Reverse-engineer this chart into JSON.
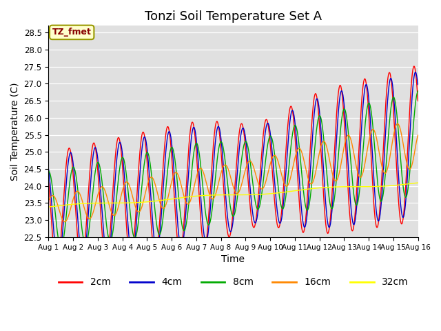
{
  "title": "Tonzi Soil Temperature Set A",
  "xlabel": "Time",
  "ylabel": "Soil Temperature (C)",
  "annotation": "TZ_fmet",
  "ylim": [
    22.5,
    28.7
  ],
  "yticks": [
    22.5,
    23.0,
    23.5,
    24.0,
    24.5,
    25.0,
    25.5,
    26.0,
    26.5,
    27.0,
    27.5,
    28.0,
    28.5
  ],
  "series_colors": [
    "#ff0000",
    "#0000cc",
    "#00aa00",
    "#ff8800",
    "#ffff00"
  ],
  "series_labels": [
    "2cm",
    "4cm",
    "8cm",
    "16cm",
    "32cm"
  ],
  "background_color": "#e0e0e0",
  "title_fontsize": 13,
  "axis_fontsize": 10,
  "legend_fontsize": 10,
  "annotation_facecolor": "#ffffcc",
  "annotation_edgecolor": "#999900",
  "annotation_textcolor": "#880000"
}
